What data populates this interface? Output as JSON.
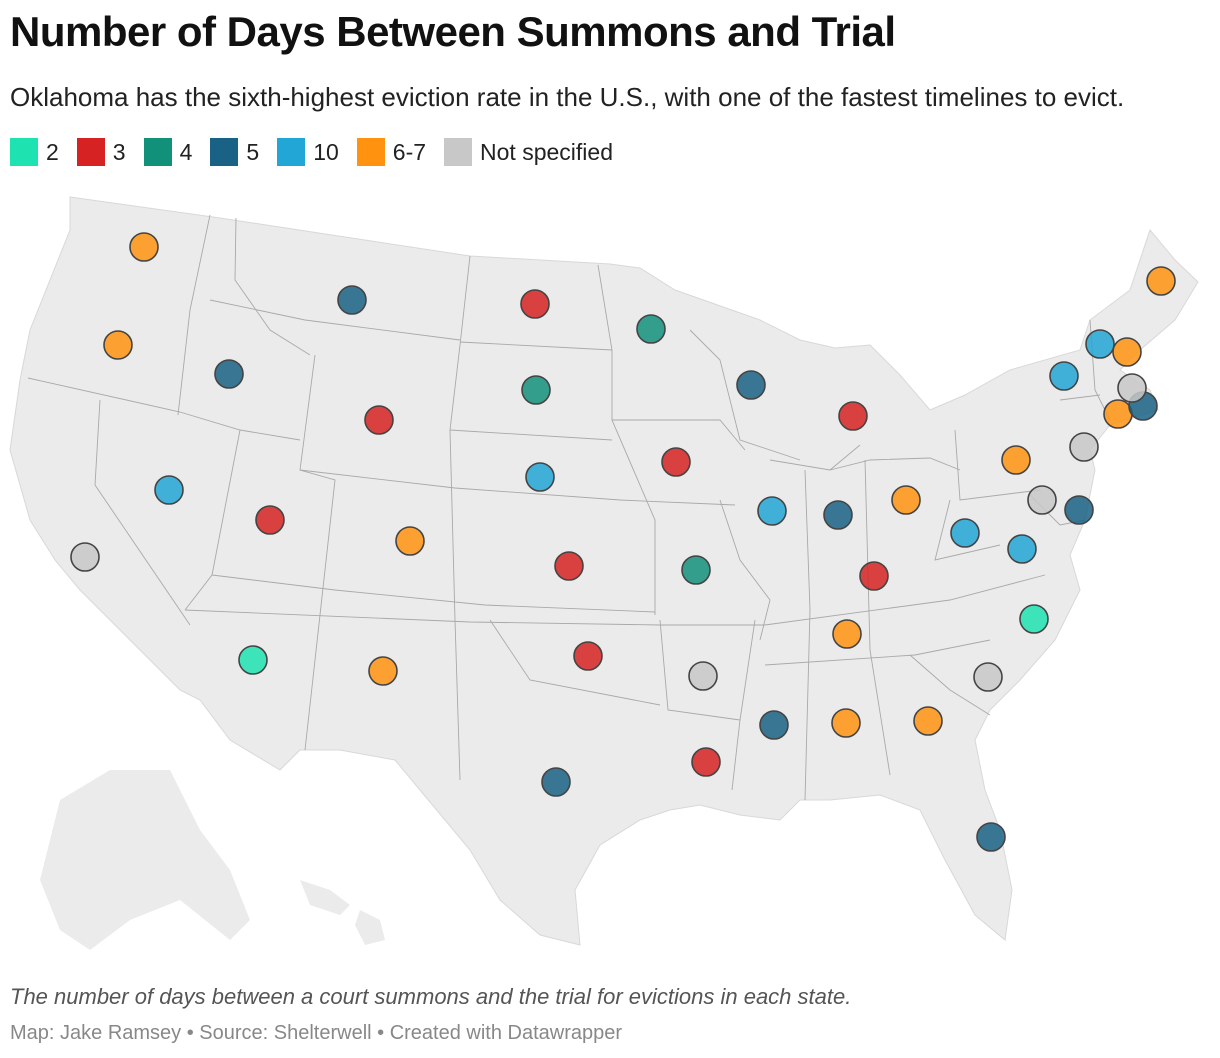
{
  "title": "Number of Days Between Summons and Trial",
  "subtitle": "Oklahoma has the sixth-highest eviction rate in the U.S., with one of the fastest timelines to evict.",
  "legend": [
    {
      "label": "2",
      "color": "#1ee3b0"
    },
    {
      "label": "3",
      "color": "#d62222"
    },
    {
      "label": "4",
      "color": "#12917a"
    },
    {
      "label": "5",
      "color": "#1a6285"
    },
    {
      "label": "10",
      "color": "#22a6d6"
    },
    {
      "label": "6-7",
      "color": "#ff9310"
    },
    {
      "label": "Not specified",
      "color": "#c8c8c8"
    }
  ],
  "caption": "The number of days between a court summons and the trial for evictions in each state.",
  "credit": "Map: Jake Ramsey • Source: Shelterwell • Created with Datawrapper"
}
